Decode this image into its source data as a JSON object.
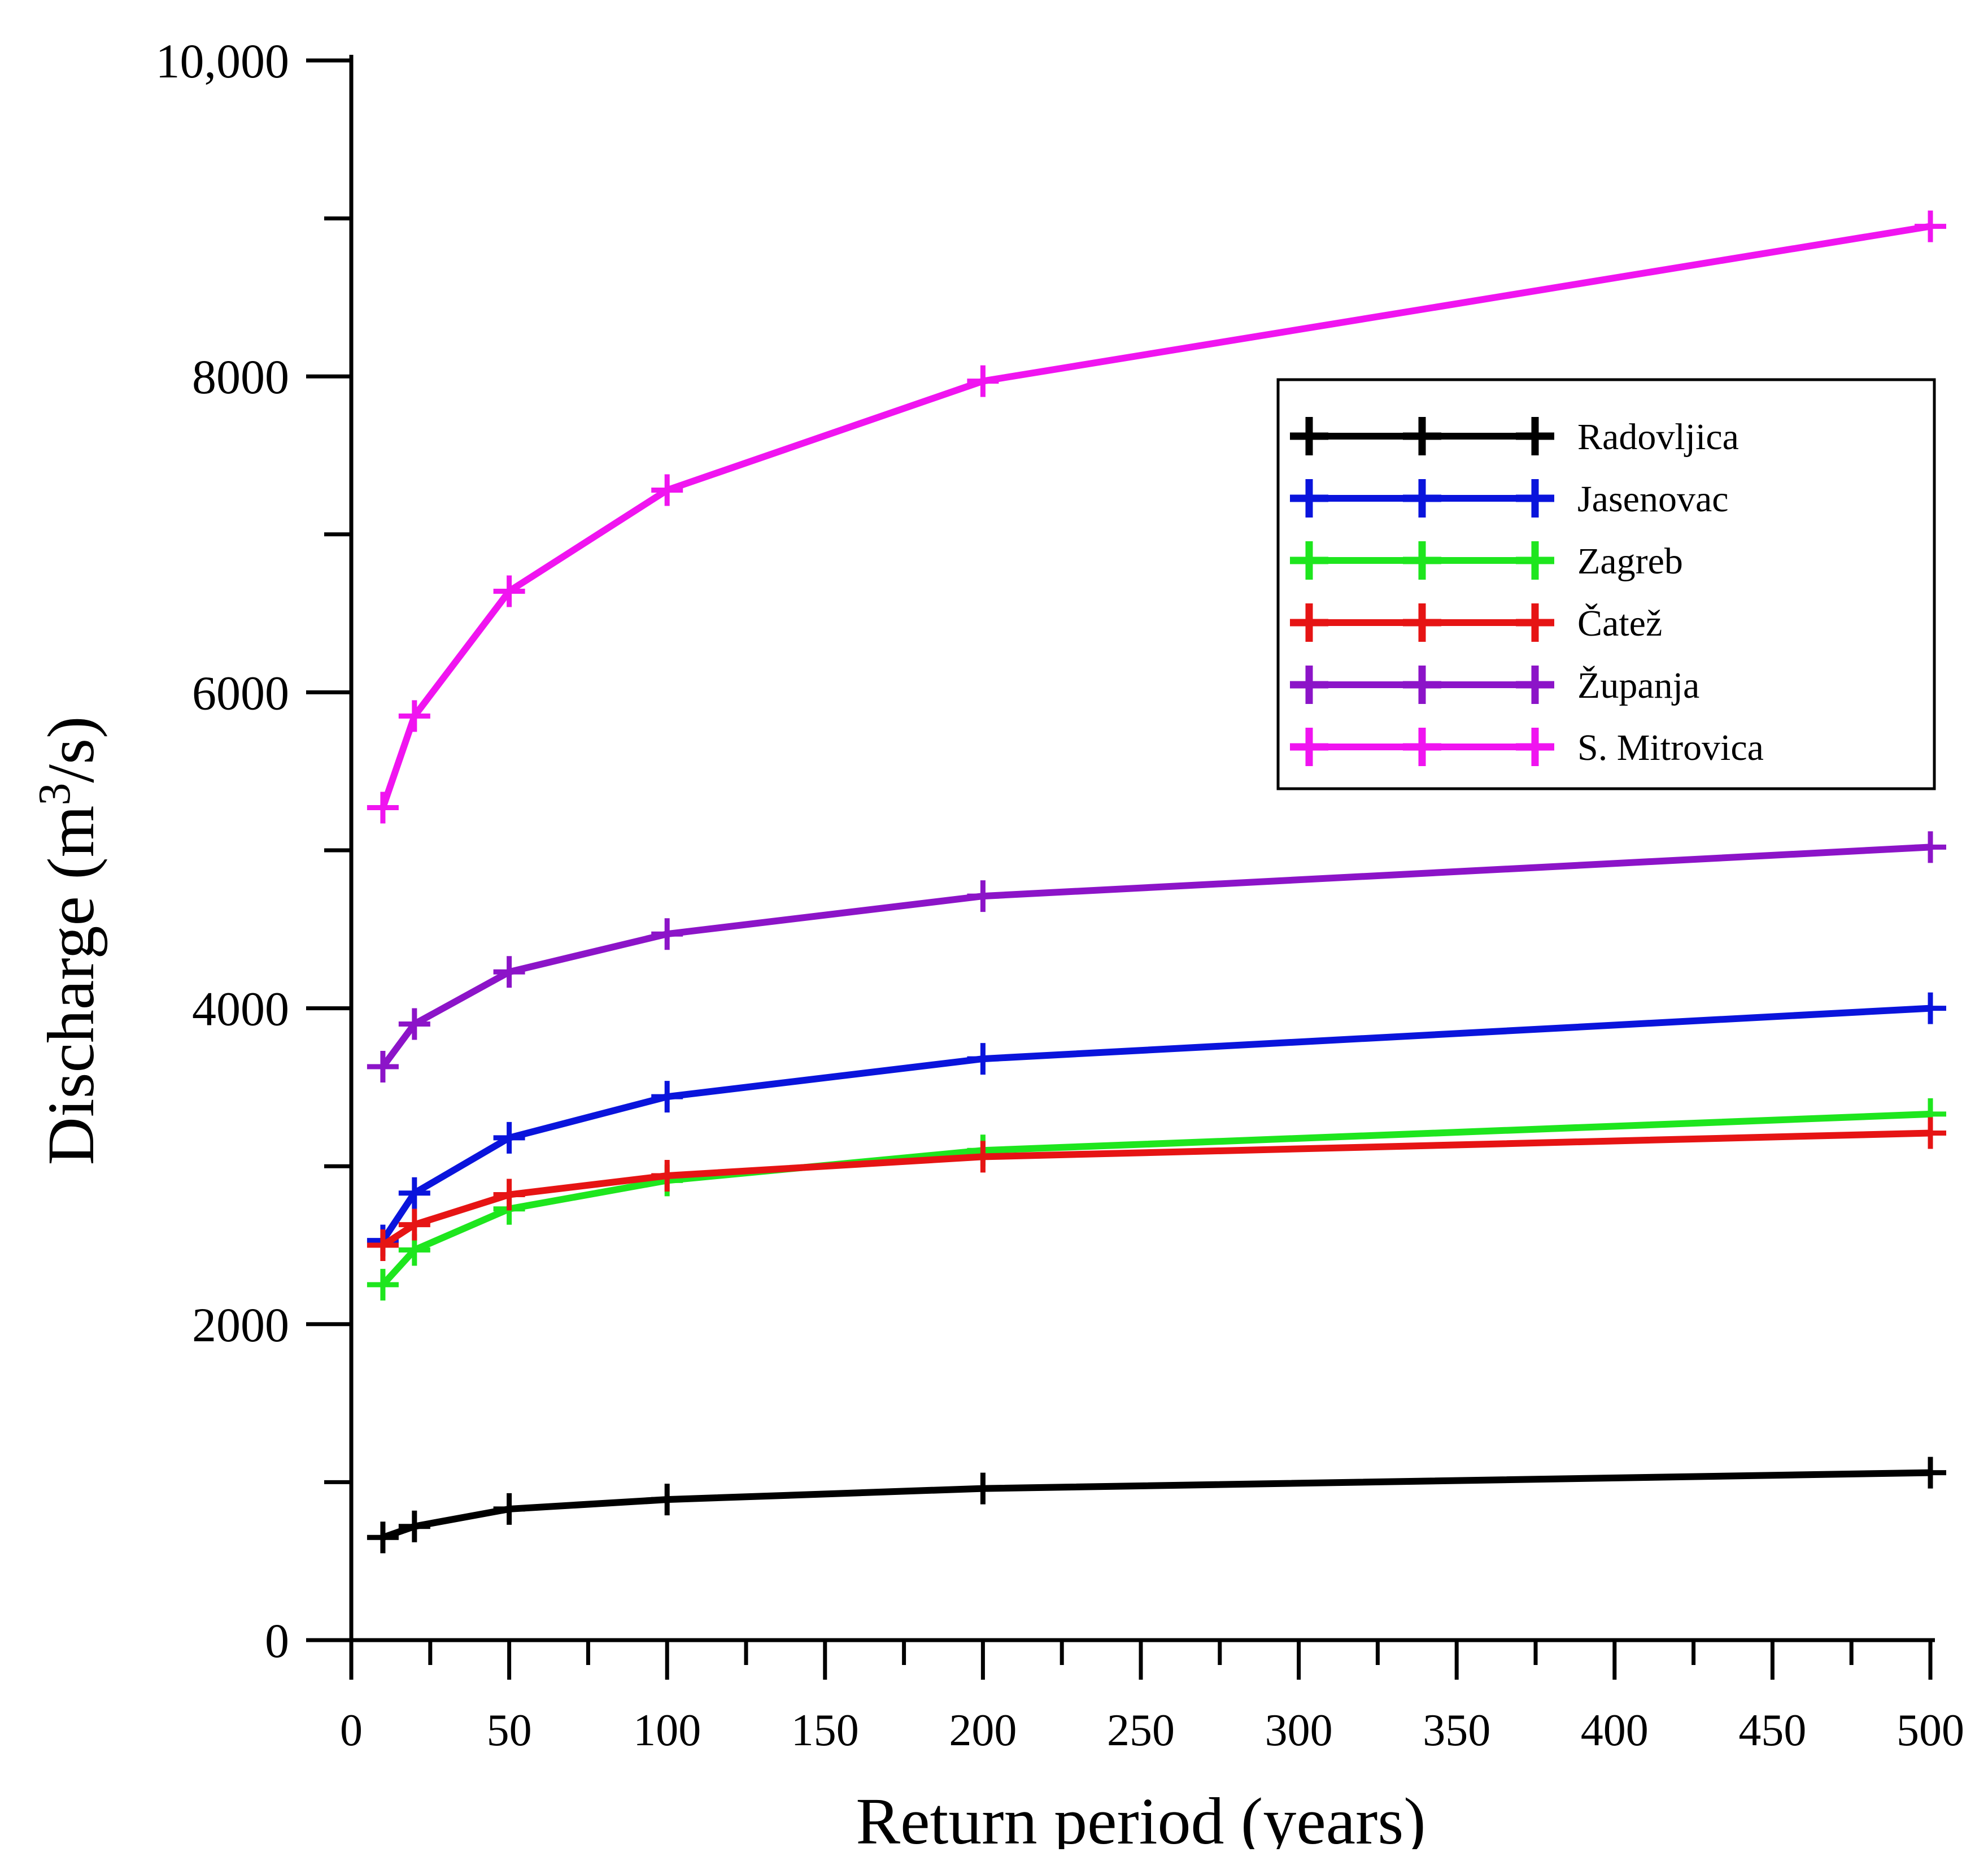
{
  "chart_data": {
    "type": "line",
    "title": "",
    "xlabel": "Return period (years)",
    "ylabel_main": "Discharge (m",
    "ylabel_sup": "3",
    "ylabel_end": "/s)",
    "xlim": [
      0,
      500
    ],
    "ylim": [
      0,
      10000
    ],
    "x_ticks": [
      0,
      50,
      100,
      150,
      200,
      250,
      300,
      350,
      400,
      450,
      500
    ],
    "x_tick_labels": [
      "0",
      "50",
      "100",
      "150",
      "200",
      "250",
      "300",
      "350",
      "400",
      "450",
      "500"
    ],
    "y_ticks": [
      0,
      2000,
      4000,
      6000,
      8000,
      10000
    ],
    "y_tick_labels": [
      "0",
      "2000",
      "4000",
      "6000",
      "8000",
      "10,000"
    ],
    "y_minor_ticks": [
      1000,
      3000,
      5000,
      7000,
      9000
    ],
    "x_minor_ticks": [
      25,
      75,
      125,
      175,
      225,
      275,
      325,
      375,
      425,
      475
    ],
    "legend_position": "top-right",
    "grid": false,
    "x": [
      10,
      20,
      50,
      100,
      200,
      500
    ],
    "series": [
      {
        "name": "Radovljica",
        "color": "#000000",
        "values": [
          650,
          720,
          830,
          890,
          960,
          1060
        ]
      },
      {
        "name": "Jasenovac",
        "color": "#0a14dc",
        "values": [
          2530,
          2830,
          3180,
          3440,
          3680,
          4000
        ]
      },
      {
        "name": "Zagreb",
        "color": "#1ee61e",
        "values": [
          2250,
          2470,
          2730,
          2910,
          3100,
          3330
        ]
      },
      {
        "name": "Čatež",
        "color": "#e61414",
        "values": [
          2500,
          2630,
          2820,
          2940,
          3060,
          3210
        ]
      },
      {
        "name": "Županja",
        "color": "#8c14c8",
        "values": [
          3630,
          3900,
          4230,
          4470,
          4710,
          5020
        ]
      },
      {
        "name": "S. Mitrovica",
        "color": "#f014f0",
        "values": [
          5270,
          5850,
          6640,
          7280,
          7970,
          8950
        ]
      }
    ]
  }
}
